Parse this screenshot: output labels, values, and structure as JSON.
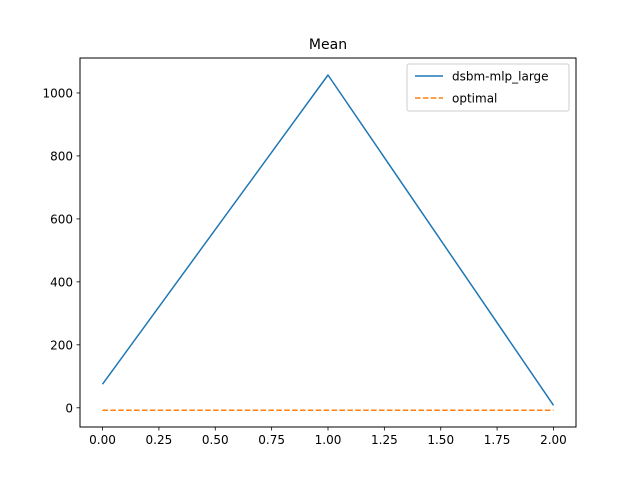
{
  "chart_data": {
    "type": "line",
    "title": "Mean",
    "xlabel": "",
    "ylabel": "",
    "xlim": [
      -0.1,
      2.1
    ],
    "ylim": [
      -61,
      1111
    ],
    "xticks": [
      0.0,
      0.25,
      0.5,
      0.75,
      1.0,
      1.25,
      1.5,
      1.75,
      2.0
    ],
    "xtick_labels": [
      "0.00",
      "0.25",
      "0.50",
      "0.75",
      "1.00",
      "1.25",
      "1.50",
      "1.75",
      "2.00"
    ],
    "yticks": [
      0,
      200,
      400,
      600,
      800,
      1000
    ],
    "ytick_labels": [
      "0",
      "200",
      "400",
      "600",
      "800",
      "1000"
    ],
    "grid": false,
    "legend_position": "upper right",
    "series": [
      {
        "name": "dsbm-mlp_large",
        "x": [
          0,
          1,
          2
        ],
        "y": [
          75,
          1057,
          8
        ],
        "color": "#1f77b4",
        "style": "solid"
      },
      {
        "name": "optimal",
        "x": [
          0,
          1,
          2
        ],
        "y": [
          -8,
          -8,
          -8
        ],
        "color": "#ff7f0e",
        "style": "dashed"
      }
    ]
  }
}
